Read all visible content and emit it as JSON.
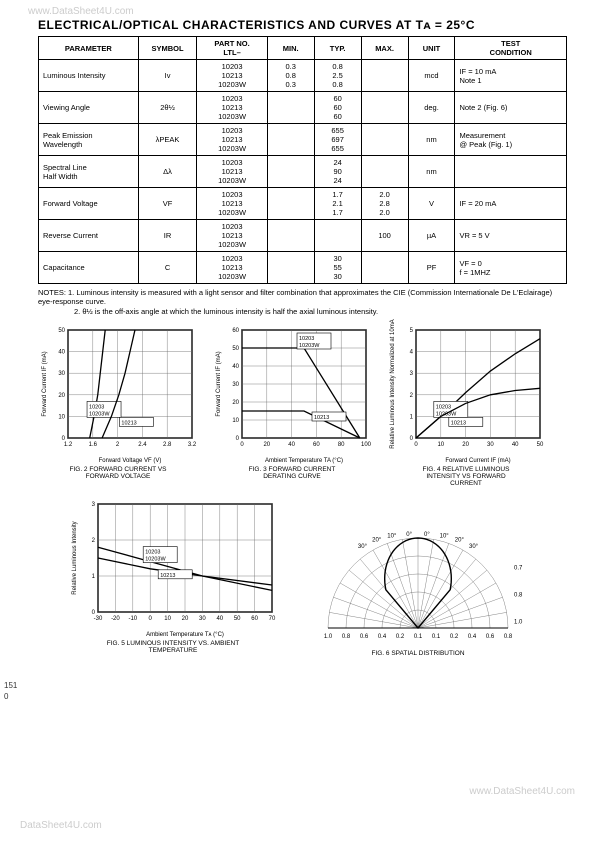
{
  "watermarks": {
    "top": "www.DataSheet4U.com",
    "bottom_right": "www.DataSheet4U.com",
    "bottom_left": "DataSheet4U.com"
  },
  "title": "ELECTRICAL/OPTICAL CHARACTERISTICS AND CURVES AT Tᴀ = 25°C",
  "side_numbers": {
    "a": "151",
    "b": "0"
  },
  "table": {
    "columns": [
      "PARAMETER",
      "SYMBOL",
      "PART NO.\nLTL–",
      "MIN.",
      "TYP.",
      "MAX.",
      "UNIT",
      "TEST\nCONDITION"
    ],
    "rows": [
      {
        "param": "Luminous Intensity",
        "symbol": "Iv",
        "parts": "10203\n10213\n10203W",
        "min": "0.3\n0.8\n0.3",
        "typ": "0.8\n2.5\n0.8",
        "max": "",
        "unit": "mcd",
        "cond": "IF = 10 mA\nNote 1"
      },
      {
        "param": "Viewing Angle",
        "symbol": "2θ½",
        "parts": "10203\n10213\n10203W",
        "min": "",
        "typ": "60\n60\n60",
        "max": "",
        "unit": "deg.",
        "cond": "Note 2 (Fig. 6)"
      },
      {
        "param": "Peak Emission\nWavelength",
        "symbol": "λPEAK",
        "parts": "10203\n10213\n10203W",
        "min": "",
        "typ": "655\n697\n655",
        "max": "",
        "unit": "nm",
        "cond": "Measurement\n@ Peak (Fig. 1)"
      },
      {
        "param": "Spectral Line\nHalf Width",
        "symbol": "Δλ",
        "parts": "10203\n10213\n10203W",
        "min": "",
        "typ": "24\n90\n24",
        "max": "",
        "unit": "nm",
        "cond": ""
      },
      {
        "param": "Forward Voltage",
        "symbol": "VF",
        "parts": "10203\n10213\n10203W",
        "min": "",
        "typ": "1.7\n2.1\n1.7",
        "max": "2.0\n2.8\n2.0",
        "unit": "V",
        "cond": "IF = 20 mA"
      },
      {
        "param": "Reverse Current",
        "symbol": "IR",
        "parts": "10203\n10213\n10203W",
        "min": "",
        "typ": "",
        "max": "100",
        "unit": "µA",
        "cond": "VR = 5 V"
      },
      {
        "param": "Capacitance",
        "symbol": "C",
        "parts": "10203\n10213\n10203W",
        "min": "",
        "typ": "30\n55\n30",
        "max": "",
        "unit": "PF",
        "cond": "VF = 0\nf = 1MHZ"
      }
    ]
  },
  "notes": {
    "n1": "NOTES: 1. Luminous intensity is measured with a light sensor and filter combination that approximates the CIE (Commission Internationale De L'Eclairage) eye-response curve.",
    "n2": "2. θ½ is the off-axis angle at which the luminous intensity is half the axial luminous intensity."
  },
  "fig2": {
    "caption": "FIG. 2  FORWARD CURRENT VS\nFORWARD VOLTAGE",
    "xlabel": "Forward Voltage VF (V)",
    "ylabel": "Forward Current IF (mA)",
    "xlim": [
      1.2,
      3.2
    ],
    "xticks": [
      1.2,
      1.6,
      2.0,
      2.4,
      2.8,
      3.2
    ],
    "ylim": [
      0,
      50
    ],
    "yticks": [
      0,
      10,
      20,
      30,
      40,
      50
    ],
    "series": [
      {
        "label": "10203\n10203W",
        "points": [
          [
            1.55,
            0
          ],
          [
            1.62,
            10
          ],
          [
            1.68,
            20
          ],
          [
            1.72,
            30
          ],
          [
            1.76,
            40
          ],
          [
            1.8,
            50
          ]
        ]
      },
      {
        "label": "10213",
        "points": [
          [
            1.75,
            0
          ],
          [
            1.9,
            10
          ],
          [
            2.02,
            20
          ],
          [
            2.12,
            30
          ],
          [
            2.2,
            40
          ],
          [
            2.28,
            50
          ]
        ]
      }
    ],
    "line_color": "#000",
    "grid_color": "#666",
    "bg": "#fff",
    "label_fontsize": 6
  },
  "fig3": {
    "caption": "FIG. 3  FORWARD CURRENT\nDERATING CURVE",
    "xlabel": "Ambient Temperature TA (°C)",
    "ylabel": "Forward Current IF (mA)",
    "xlim": [
      0,
      100
    ],
    "xticks": [
      0,
      20,
      40,
      60,
      80,
      100
    ],
    "ylim": [
      0,
      60
    ],
    "yticks": [
      0,
      10,
      20,
      30,
      40,
      50,
      60
    ],
    "series": [
      {
        "label": "10203\n10203W",
        "points": [
          [
            0,
            50
          ],
          [
            50,
            50
          ],
          [
            95,
            0
          ]
        ]
      },
      {
        "label": "10213",
        "points": [
          [
            0,
            15
          ],
          [
            50,
            15
          ],
          [
            95,
            0
          ]
        ]
      }
    ],
    "line_color": "#000",
    "grid_color": "#666",
    "bg": "#fff",
    "label_fontsize": 6
  },
  "fig4": {
    "caption": "FIG. 4  RELATIVE LUMINOUS\nINTENSITY VS FORWARD\nCURRENT",
    "xlabel": "Forward Current IF (mA)",
    "ylabel": "Relative Luminous Intensity\nNormalized at 10mA",
    "xlim": [
      0,
      50
    ],
    "xticks": [
      0,
      10,
      20,
      30,
      40,
      50
    ],
    "ylim": [
      0,
      5.0
    ],
    "yticks": [
      0,
      1.0,
      2.0,
      3.0,
      4.0,
      5.0
    ],
    "series": [
      {
        "label": "10203\n10203W",
        "points": [
          [
            0,
            0
          ],
          [
            10,
            1.0
          ],
          [
            20,
            2.1
          ],
          [
            30,
            3.1
          ],
          [
            40,
            3.9
          ],
          [
            50,
            4.6
          ]
        ]
      },
      {
        "label": "10213",
        "points": [
          [
            0,
            0
          ],
          [
            10,
            1.0
          ],
          [
            20,
            1.6
          ],
          [
            30,
            2.0
          ],
          [
            40,
            2.2
          ],
          [
            50,
            2.3
          ]
        ]
      }
    ],
    "line_color": "#000",
    "grid_color": "#666",
    "bg": "#fff",
    "label_fontsize": 6
  },
  "fig5": {
    "caption": "FIG. 5  LUMINOUS INTENSITY VS. AMBIENT\nTEMPERATURE",
    "xlabel": "Ambient Temperature Tᴀ (°C)",
    "ylabel": "Relative Luminous Intensity",
    "xlim": [
      -30,
      70
    ],
    "xticks": [
      -30,
      -20,
      -10,
      0,
      10,
      20,
      30,
      40,
      50,
      60,
      70
    ],
    "ylim": [
      0,
      3
    ],
    "yticks": [
      0,
      1,
      2,
      3
    ],
    "series": [
      {
        "label": "10203\n10203W",
        "points": [
          [
            -30,
            1.8
          ],
          [
            0,
            1.4
          ],
          [
            30,
            1.0
          ],
          [
            70,
            0.6
          ]
        ]
      },
      {
        "label": "10213",
        "points": [
          [
            -30,
            1.5
          ],
          [
            0,
            1.2
          ],
          [
            30,
            1.0
          ],
          [
            70,
            0.75
          ]
        ]
      }
    ],
    "line_color": "#000",
    "grid_color": "#666",
    "bg": "#fff",
    "label_fontsize": 6
  },
  "fig6": {
    "caption": "FIG. 6  SPATIAL DISTRIBUTION",
    "angle_labels": [
      "0°",
      "10°",
      "20°",
      "30°"
    ],
    "radial_ticks": [
      "1.0",
      "0.8",
      "0.6",
      "0.4",
      "0.2",
      "0.1",
      "0.1",
      "0.2",
      "0.4",
      "0.6",
      "0.8"
    ],
    "side_ticks": [
      "1.0",
      "0.8",
      "0.7"
    ],
    "line_color": "#000",
    "grid_color": "#666",
    "bg": "#fff",
    "label_fontsize": 6
  }
}
